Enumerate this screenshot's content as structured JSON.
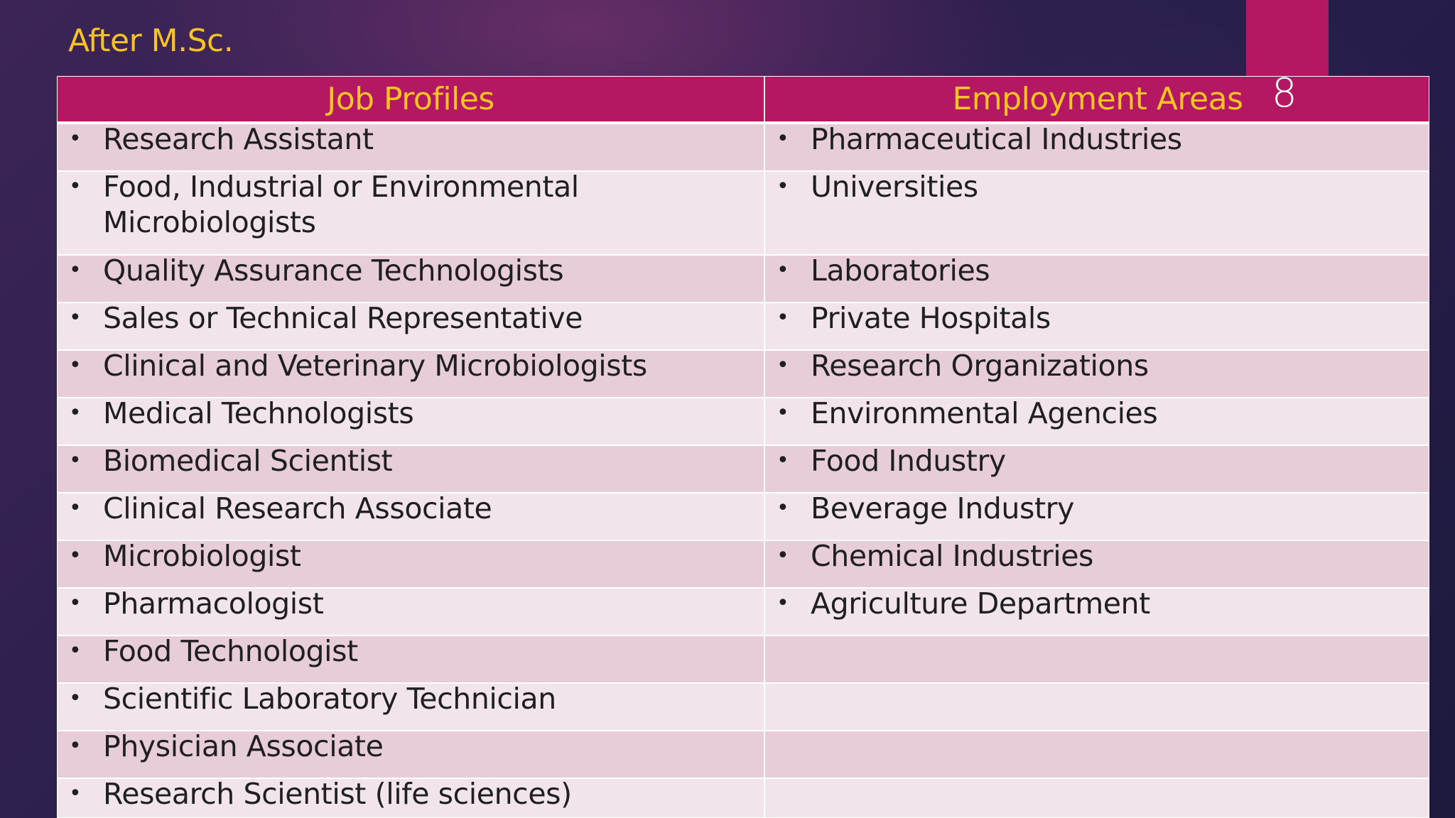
{
  "slide": {
    "title": "After M.Sc.",
    "number": "8",
    "colors": {
      "accent": "#b51862",
      "title": "#f7c325",
      "row_dark": "#e6cdd8",
      "row_light": "#f1e5eb"
    }
  },
  "table": {
    "headers": [
      "Job Profiles",
      "Employment Areas"
    ],
    "bullet": "•",
    "rows": [
      {
        "job": "Research Assistant",
        "area": "Pharmaceutical Industries"
      },
      {
        "job": "Food, Industrial or Environmental Microbiologists",
        "area": "Universities"
      },
      {
        "job": "Quality Assurance Technologists",
        "area": "Laboratories"
      },
      {
        "job": "Sales or Technical Representative",
        "area": "Private Hospitals"
      },
      {
        "job": "Clinical and Veterinary Microbiologists",
        "area": "Research Organizations"
      },
      {
        "job": "Medical Technologists",
        "area": "Environmental Agencies"
      },
      {
        "job": "Biomedical Scientist",
        "area": "Food Industry"
      },
      {
        "job": "Clinical Research Associate",
        "area": "Beverage Industry"
      },
      {
        "job": "Microbiologist",
        "area": "Chemical Industries"
      },
      {
        "job": "Pharmacologist",
        "area": "Agriculture Department"
      },
      {
        "job": "Food Technologist",
        "area": ""
      },
      {
        "job": "Scientific Laboratory Technician",
        "area": ""
      },
      {
        "job": "Physician Associate",
        "area": ""
      },
      {
        "job": "Research Scientist (life sciences)",
        "area": ""
      }
    ]
  }
}
